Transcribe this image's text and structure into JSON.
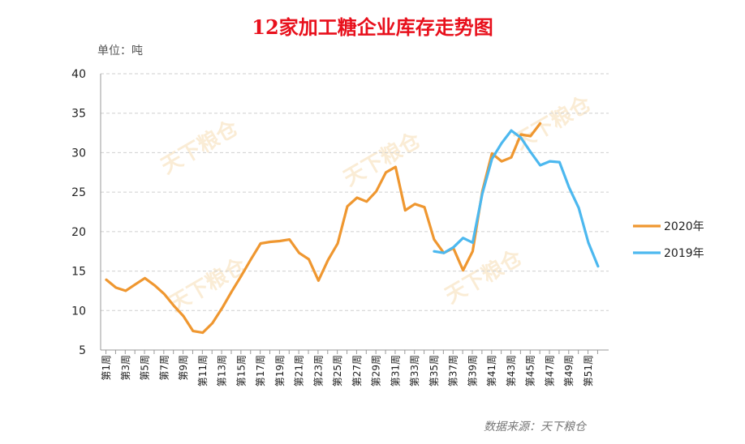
{
  "chart_data": {
    "type": "line",
    "title": "12家加工糖企业库存走势图",
    "unit_label": "单位：吨",
    "source": "数据来源：天下粮仓",
    "watermark": "天下粮仓",
    "ylim": [
      5,
      40
    ],
    "yticks": [
      5,
      10,
      15,
      20,
      25,
      30,
      35,
      40
    ],
    "grid": "horizontal dashed",
    "legend_position": "right",
    "x_tick_labels": [
      "第1周",
      "第3周",
      "第5周",
      "第7周",
      "第9周",
      "第11周",
      "第13周",
      "第15周",
      "第17周",
      "第19周",
      "第21周",
      "第23周",
      "第25周",
      "第27周",
      "第29周",
      "第31周",
      "第33周",
      "第35周",
      "第37周",
      "第39周",
      "第41周",
      "第43周",
      "第45周",
      "第47周",
      "第49周",
      "第51周"
    ],
    "x": [
      1,
      2,
      3,
      4,
      5,
      6,
      7,
      8,
      9,
      10,
      11,
      12,
      13,
      14,
      15,
      16,
      17,
      18,
      19,
      20,
      21,
      22,
      23,
      24,
      25,
      26,
      27,
      28,
      29,
      30,
      31,
      32,
      33,
      34,
      35,
      36,
      37,
      38,
      39,
      40,
      41,
      42,
      43,
      44,
      45,
      46,
      47,
      48,
      49,
      50,
      51,
      52
    ],
    "series": [
      {
        "name": "2020年",
        "color": "#ef9730",
        "values": [
          13.9,
          12.9,
          12.5,
          13.3,
          14.1,
          13.2,
          12.1,
          10.6,
          9.3,
          7.4,
          7.2,
          8.4,
          10.3,
          12.4,
          14.4,
          16.5,
          18.5,
          18.7,
          18.8,
          19.0,
          17.3,
          16.5,
          13.8,
          16.4,
          18.5,
          23.2,
          24.3,
          23.8,
          25.1,
          27.5,
          28.2,
          22.7,
          23.5,
          23.1,
          19.0,
          17.3,
          17.9,
          15.1,
          17.5,
          25.1,
          29.9,
          28.9,
          29.4,
          32.3,
          32.1,
          33.7,
          null,
          null,
          null,
          null,
          null,
          null
        ]
      },
      {
        "name": "2019年",
        "color": "#4cb8ef",
        "values": [
          null,
          null,
          null,
          null,
          null,
          null,
          null,
          null,
          null,
          null,
          null,
          null,
          null,
          null,
          null,
          null,
          null,
          null,
          null,
          null,
          null,
          null,
          null,
          null,
          null,
          null,
          null,
          null,
          null,
          null,
          null,
          null,
          null,
          null,
          17.5,
          17.3,
          18.0,
          19.2,
          18.6,
          24.8,
          29.2,
          31.2,
          32.8,
          31.9,
          30.1,
          28.4,
          28.9,
          28.8,
          25.6,
          23.0,
          18.6,
          15.6
        ]
      }
    ]
  }
}
